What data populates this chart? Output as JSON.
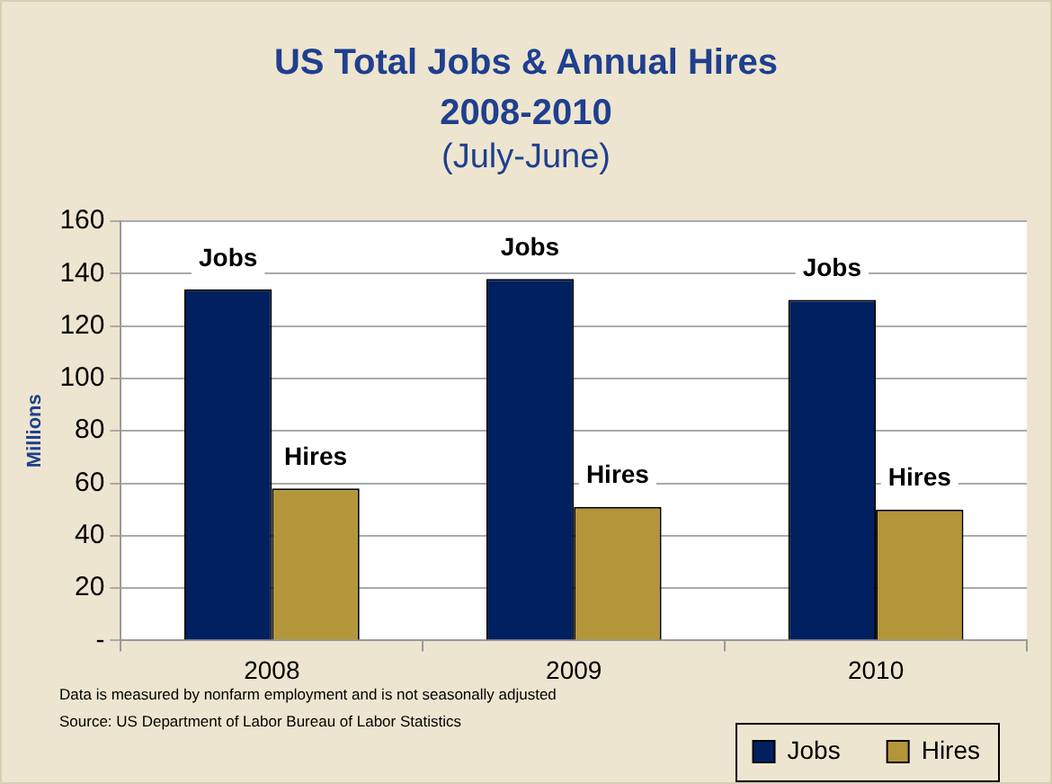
{
  "chart_data": {
    "type": "bar",
    "title": "US Total Jobs & Annual Hires 2008-2010",
    "subtitle": "(July-June)",
    "ylabel": "Millions",
    "categories": [
      "2008",
      "2009",
      "2010"
    ],
    "series": [
      {
        "name": "Jobs",
        "color": "#002060",
        "values": [
          134,
          138,
          130
        ]
      },
      {
        "name": "Hires",
        "color": "#b3963a",
        "values": [
          58,
          51,
          50
        ]
      }
    ],
    "ylim": [
      0,
      160
    ],
    "yticks": [
      {
        "value": 0,
        "label": "-"
      },
      20,
      40,
      60,
      80,
      100,
      120,
      140,
      160
    ],
    "grid": "y",
    "legend": "bottom right",
    "annotations": [
      "Data is measured by nonfarm employment and is not seasonally adjusted",
      "Source:  US Department of Labor Bureau of Labor Statistics"
    ]
  }
}
